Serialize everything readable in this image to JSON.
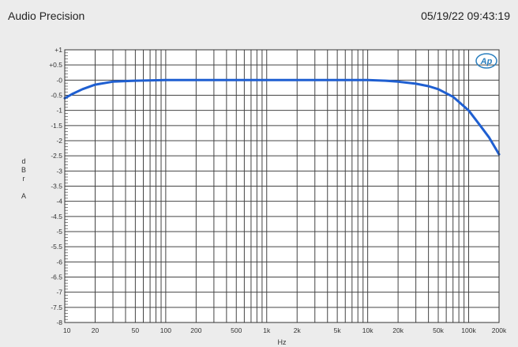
{
  "header": {
    "app_name": "Audio Precision",
    "timestamp": "05/19/22 09:43:19"
  },
  "logo_text": "Ap",
  "colors": {
    "background": "#ececec",
    "plot_background": "#ffffff",
    "grid": "#444444",
    "trace": "#1f5fd1",
    "logo": "#2a7fbf"
  },
  "chart_data": {
    "type": "line",
    "title": "",
    "xlabel": "Hz",
    "ylabel_chars": [
      "d",
      "B",
      "r",
      "",
      "A"
    ],
    "xscale": "log",
    "xlim": [
      10,
      200000
    ],
    "ylim": [
      -8,
      1
    ],
    "grid": true,
    "x_ticks": [
      {
        "v": 10,
        "label": "10"
      },
      {
        "v": 20,
        "label": "20"
      },
      {
        "v": 50,
        "label": "50"
      },
      {
        "v": 100,
        "label": "100"
      },
      {
        "v": 200,
        "label": "200"
      },
      {
        "v": 500,
        "label": "500"
      },
      {
        "v": 1000,
        "label": "1k"
      },
      {
        "v": 2000,
        "label": "2k"
      },
      {
        "v": 5000,
        "label": "5k"
      },
      {
        "v": 10000,
        "label": "10k"
      },
      {
        "v": 20000,
        "label": "20k"
      },
      {
        "v": 50000,
        "label": "50k"
      },
      {
        "v": 100000,
        "label": "100k"
      },
      {
        "v": 200000,
        "label": "200k"
      }
    ],
    "y_ticks": [
      {
        "v": 1,
        "label": "+1"
      },
      {
        "v": 0.5,
        "label": "+0.5"
      },
      {
        "v": 0,
        "label": "-0"
      },
      {
        "v": -0.5,
        "label": "-0.5"
      },
      {
        "v": -1,
        "label": "-1"
      },
      {
        "v": -1.5,
        "label": "-1.5"
      },
      {
        "v": -2,
        "label": "-2"
      },
      {
        "v": -2.5,
        "label": "-2.5"
      },
      {
        "v": -3,
        "label": "-3"
      },
      {
        "v": -3.5,
        "label": "-3.5"
      },
      {
        "v": -4,
        "label": "-4"
      },
      {
        "v": -4.5,
        "label": "-4.5"
      },
      {
        "v": -5,
        "label": "-5"
      },
      {
        "v": -5.5,
        "label": "-5.5"
      },
      {
        "v": -6,
        "label": "-6"
      },
      {
        "v": -6.5,
        "label": "-6.5"
      },
      {
        "v": -7,
        "label": "-7"
      },
      {
        "v": -7.5,
        "label": "-7.5"
      },
      {
        "v": -8,
        "label": "-8"
      }
    ],
    "series": [
      {
        "x": [
          10,
          12,
          15,
          20,
          30,
          50,
          100,
          200,
          500,
          1000,
          2000,
          5000,
          10000,
          15000,
          20000,
          30000,
          40000,
          50000,
          70000,
          100000,
          130000,
          160000,
          200000
        ],
        "y": [
          -0.6,
          -0.45,
          -0.3,
          -0.15,
          -0.05,
          -0.02,
          0,
          0,
          0,
          0,
          0,
          0,
          0,
          -0.02,
          -0.05,
          -0.12,
          -0.2,
          -0.3,
          -0.55,
          -1.0,
          -1.5,
          -1.9,
          -2.45
        ]
      }
    ]
  }
}
